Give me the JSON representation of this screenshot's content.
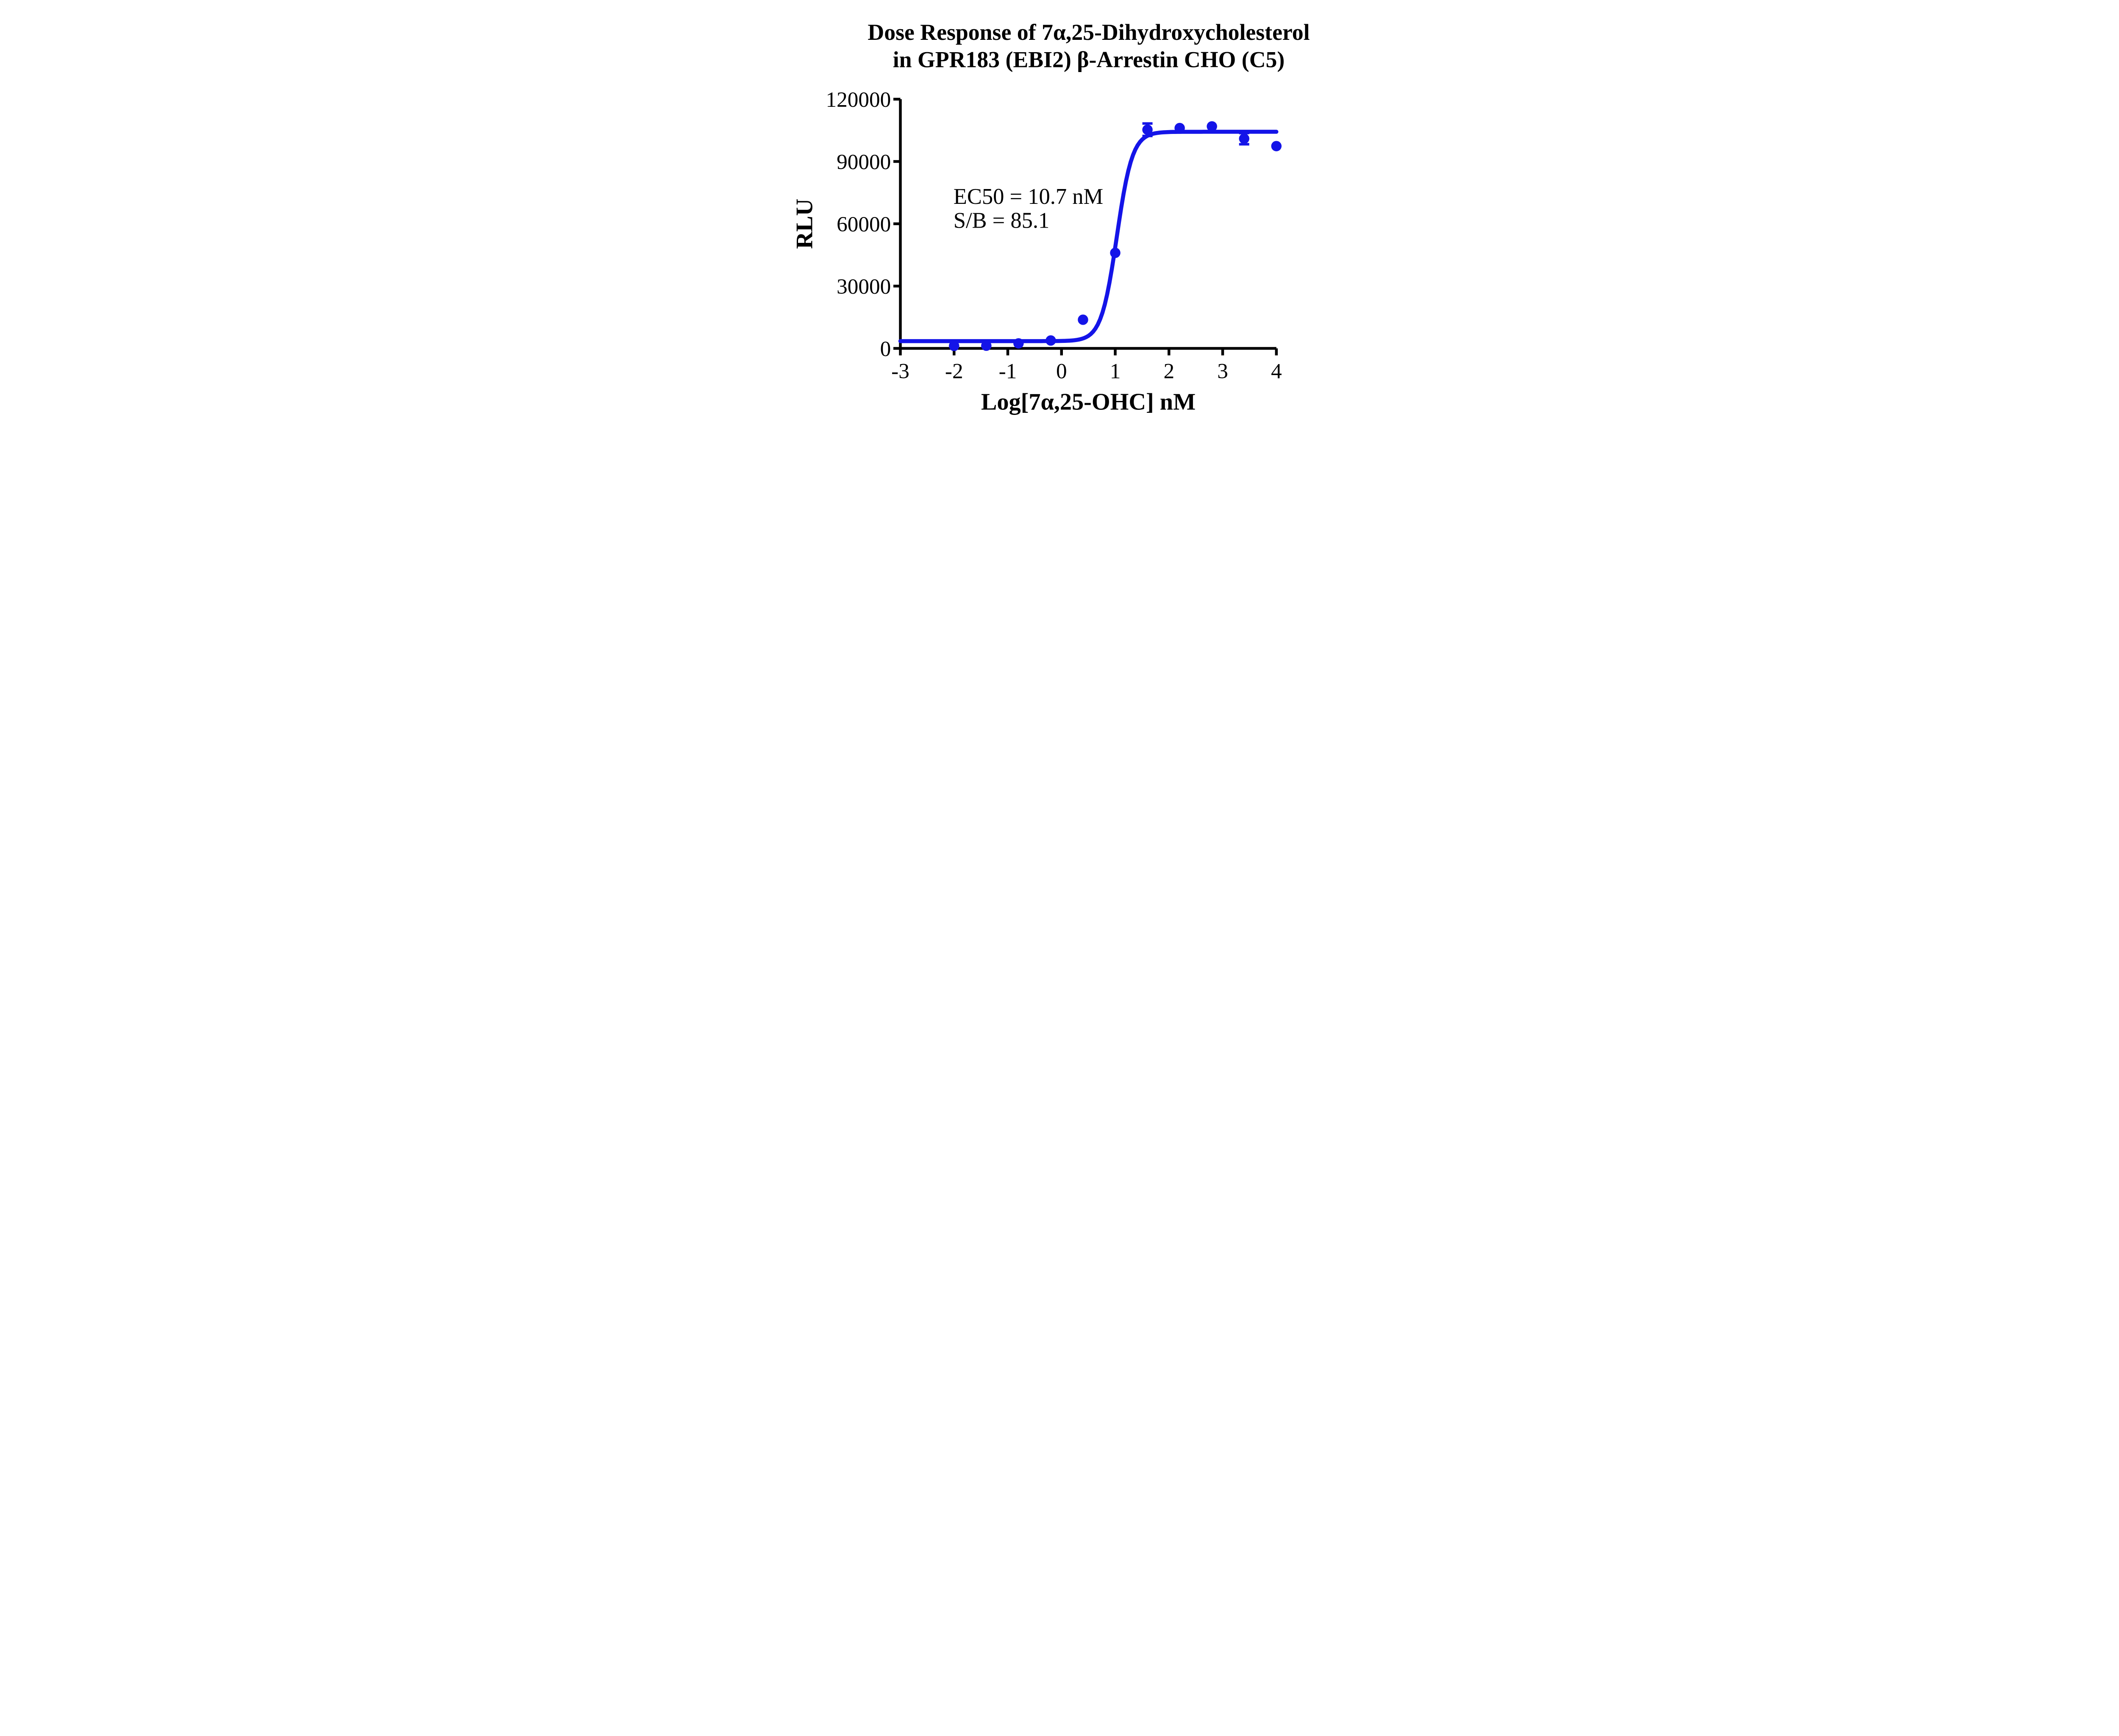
{
  "title": {
    "line1": "Dose Response of 7α,25-Dihydroxycholesterol",
    "line2": "in GPR183 (EBI2) β-Arrestin CHO (C5)"
  },
  "axes": {
    "y_label": "RLU",
    "x_label": "Log[7α,25-OHC] nM"
  },
  "annotation": {
    "line1": "EC50 = 10.7 nM",
    "line2": "S/B = 85.1"
  },
  "colors": {
    "series_blue": "#1414e8",
    "axis_black": "#000000",
    "background": "#ffffff"
  },
  "chart_data": {
    "type": "scatter",
    "title": "Dose Response of 7α,25-Dihydroxycholesterol in GPR183 (EBI2) β-Arrestin CHO (C5)",
    "xlabel": "Log[7α,25-OHC] nM",
    "ylabel": "RLU",
    "xlim": [
      -3,
      4
    ],
    "ylim": [
      0,
      120000
    ],
    "x_ticks": [
      -3,
      -2,
      -1,
      0,
      1,
      2,
      3,
      4
    ],
    "x_tick_labels": [
      "-3",
      "-2",
      "-1",
      "0",
      "1",
      "2",
      "3",
      "4"
    ],
    "y_ticks": [
      0,
      30000,
      60000,
      90000,
      120000
    ],
    "y_tick_labels": [
      "0",
      "30000",
      "60000",
      "90000",
      "120000"
    ],
    "grid": false,
    "legend": "none",
    "ec50_nM": 10.7,
    "s_over_b": 85.1,
    "series": [
      {
        "name": "7α,25-OHC",
        "marker": "circle",
        "points": [
          {
            "x": -2.0,
            "y": 1200,
            "err": null
          },
          {
            "x": -1.4,
            "y": 1300,
            "err": null
          },
          {
            "x": -0.8,
            "y": 2400,
            "err": null
          },
          {
            "x": -0.2,
            "y": 3800,
            "err": null
          },
          {
            "x": 0.4,
            "y": 13800,
            "err": null
          },
          {
            "x": 1.0,
            "y": 46000,
            "err": null
          },
          {
            "x": 1.6,
            "y": 105300,
            "err": 3000
          },
          {
            "x": 2.2,
            "y": 106100,
            "err": null
          },
          {
            "x": 2.8,
            "y": 106900,
            "err": null
          },
          {
            "x": 3.4,
            "y": 101000,
            "err": 2700
          },
          {
            "x": 4.0,
            "y": 97400,
            "err": null
          }
        ]
      }
    ],
    "fit_curve": {
      "model": "4PL",
      "bottom": 3500,
      "top": 104300,
      "log_ec50": 1.03,
      "hill_slope": 3.0,
      "x_start": -3,
      "x_end": 4
    }
  }
}
